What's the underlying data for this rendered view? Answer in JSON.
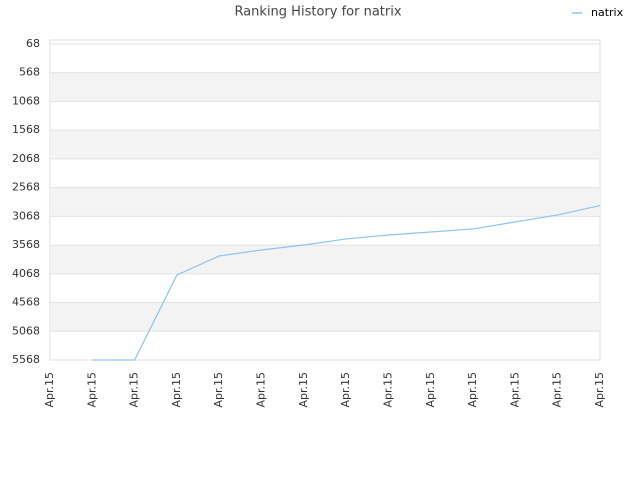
{
  "chart_data": {
    "type": "line",
    "title": "Ranking History for natrix",
    "categories": [
      "Apr.15",
      "Apr.15",
      "Apr.15",
      "Apr.15",
      "Apr.15",
      "Apr.15",
      "Apr.15",
      "Apr.15",
      "Apr.15",
      "Apr.15",
      "Apr.15",
      "Apr.15",
      "Apr.15",
      "Apr.15"
    ],
    "series": [
      {
        "name": "natrix",
        "color": "#8ec3ee",
        "values": [
          null,
          5568,
          5568,
          4088,
          3757,
          3653,
          3566,
          3461,
          3392,
          3340,
          3287,
          3165,
          3043,
          2880
        ]
      }
    ],
    "ylim": [
      5568,
      68
    ],
    "yticks": [
      68,
      568,
      1068,
      1568,
      2068,
      2568,
      3068,
      3568,
      4068,
      4568,
      5068,
      5568
    ],
    "grid": true,
    "legend": "top-right"
  }
}
